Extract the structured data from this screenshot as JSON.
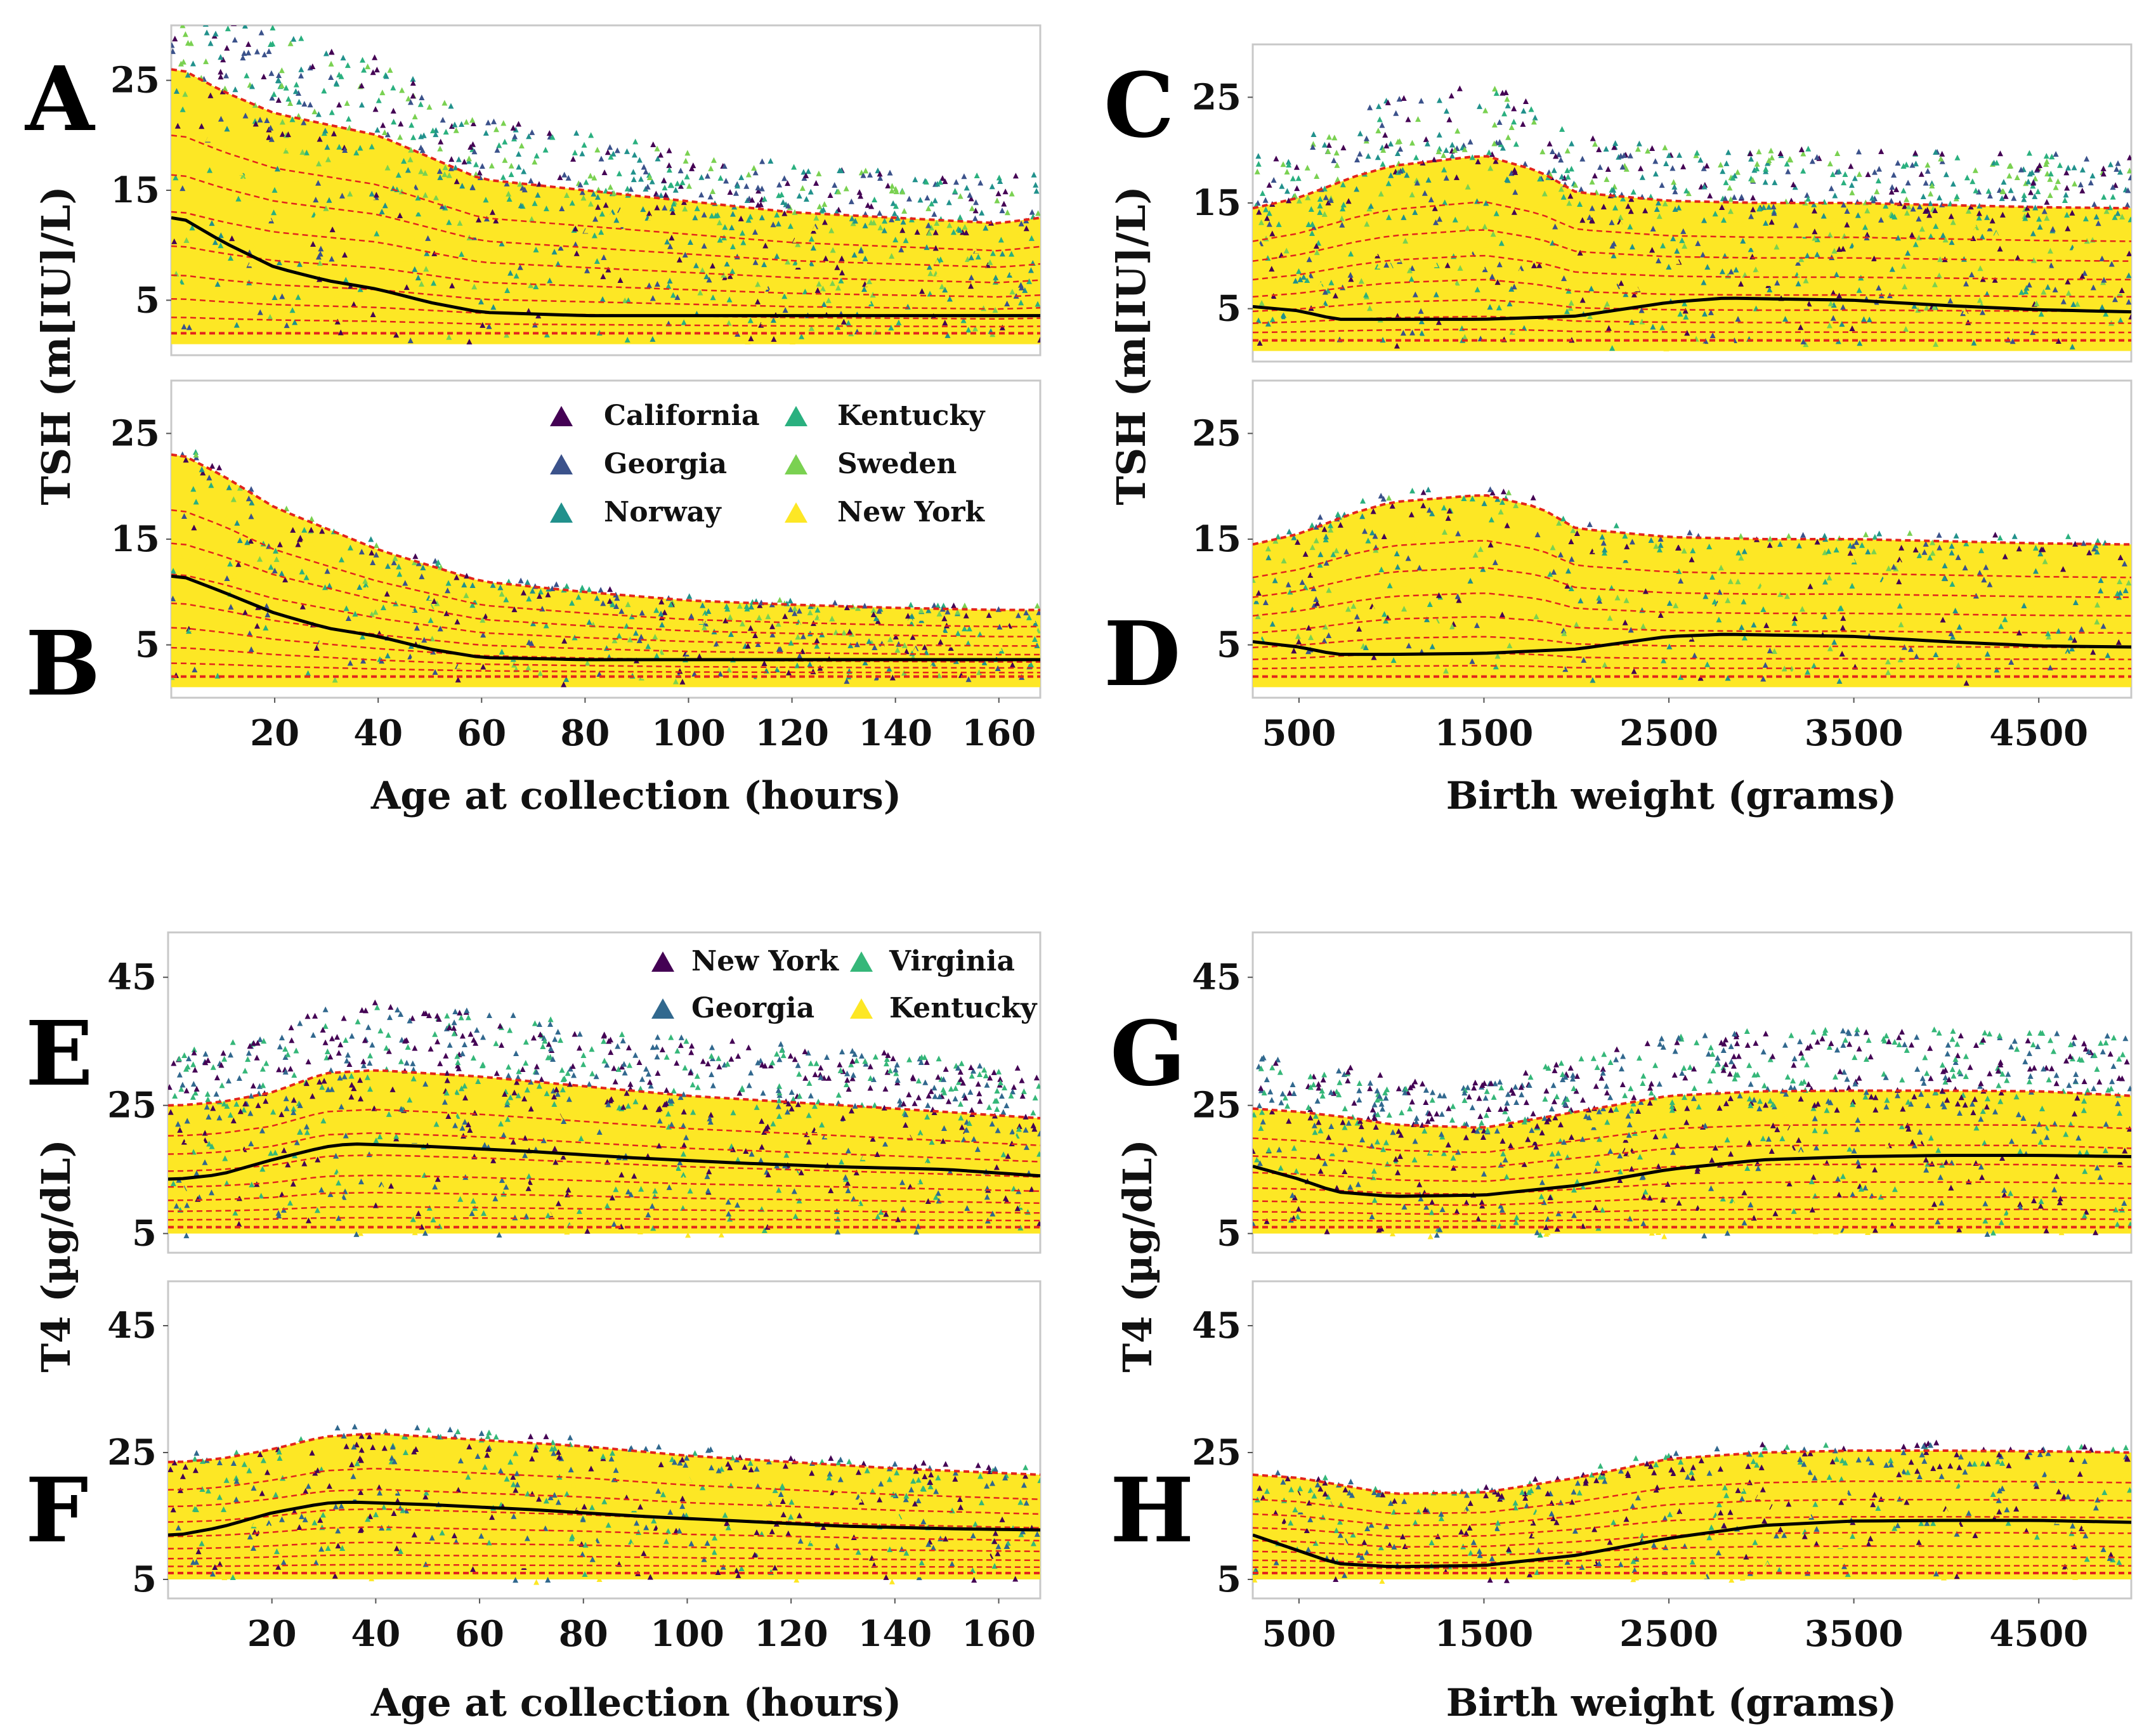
{
  "figure": {
    "description_labels": {
      "age_xlabel": "Age at collection (hours)",
      "weight_xlabel": "Birth weight (grams)",
      "tsh_ylabel": "TSH (m[IU]/L)",
      "t4_ylabel": "T4 (µg/dL)"
    }
  },
  "colors": {
    "California": "#440154",
    "Georgia": "#3b528b",
    "Norway": "#21918c",
    "Kentucky": "#2ab07f",
    "Sweden": "#7ad151",
    "New York": "#fde725",
    "NewYorkT4": "#440154",
    "GeorgiaT4": "#31688e",
    "VirginiaT4": "#35b779",
    "KentuckyT4": "#fde725",
    "median": "#000000",
    "centile": "#e3241b"
  },
  "legend_tsh": [
    "California",
    "Kentucky",
    "Georgia",
    "Sweden",
    "Norway",
    "New York"
  ],
  "legend_t4": [
    "New York",
    "Virginia",
    "Georgia",
    "Kentucky"
  ],
  "chart_data": [
    {
      "panel": "A",
      "type": "scatter",
      "xlabel": "Age at collection (hours)",
      "ylabel": "TSH (m[IU]/L)",
      "xlim": [
        0,
        168
      ],
      "ylim": [
        0,
        30
      ],
      "xticks": [],
      "yticks": [
        5,
        15,
        25
      ],
      "median": {
        "x": [
          2,
          10,
          20,
          30,
          40,
          50,
          60,
          80,
          100,
          120,
          140,
          168
        ],
        "y": [
          12.5,
          10.3,
          8.0,
          6.8,
          6.0,
          4.8,
          3.9,
          3.6,
          3.6,
          3.6,
          3.6,
          3.6
        ]
      },
      "upper": {
        "x": [
          2,
          10,
          20,
          30,
          40,
          50,
          60,
          80,
          100,
          120,
          140,
          160,
          168
        ],
        "y": [
          26,
          24,
          22,
          21,
          20,
          18,
          16,
          15,
          14,
          13,
          12.5,
          12,
          12.5
        ]
      }
    },
    {
      "panel": "B",
      "type": "scatter",
      "xlabel": "Age at collection (hours)",
      "ylabel": "TSH (m[IU]/L)",
      "xlim": [
        0,
        168
      ],
      "ylim": [
        0,
        30
      ],
      "xticks": [
        20,
        40,
        60,
        80,
        100,
        120,
        140,
        160
      ],
      "yticks": [
        5,
        15,
        25
      ],
      "median": {
        "x": [
          2,
          10,
          20,
          30,
          40,
          50,
          60,
          80,
          100,
          120,
          140,
          168
        ],
        "y": [
          11.5,
          10.0,
          8.0,
          6.6,
          5.8,
          4.6,
          3.8,
          3.6,
          3.6,
          3.6,
          3.6,
          3.6
        ]
      },
      "upper": {
        "x": [
          2,
          10,
          20,
          30,
          40,
          50,
          60,
          80,
          100,
          120,
          140,
          160,
          168
        ],
        "y": [
          23,
          21,
          18,
          16,
          14,
          12.5,
          11,
          10,
          9.2,
          8.8,
          8.5,
          8.3,
          8.3
        ]
      }
    },
    {
      "panel": "C",
      "type": "scatter",
      "xlabel": "Birth weight (grams)",
      "ylabel": "TSH (m[IU]/L)",
      "xlim": [
        250,
        5000
      ],
      "ylim": [
        0,
        30
      ],
      "xticks": [],
      "yticks": [
        5,
        15,
        25
      ],
      "median": {
        "x": [
          250,
          500,
          700,
          1000,
          1500,
          2000,
          2500,
          2800,
          3500,
          4000,
          4500,
          5000
        ],
        "y": [
          5.2,
          4.8,
          4.0,
          4.0,
          4.0,
          4.3,
          5.6,
          6.0,
          5.8,
          5.3,
          4.9,
          4.7
        ]
      },
      "upper": {
        "x": [
          250,
          500,
          800,
          1000,
          1500,
          1800,
          2000,
          2500,
          3000,
          3500,
          4000,
          4500,
          5000
        ],
        "y": [
          14.5,
          15.5,
          17.5,
          18.5,
          19.5,
          18.0,
          16.0,
          15.2,
          15.0,
          15.0,
          14.8,
          14.6,
          14.5
        ]
      }
    },
    {
      "panel": "D",
      "type": "scatter",
      "xlabel": "Birth weight (grams)",
      "ylabel": "TSH (m[IU]/L)",
      "xlim": [
        250,
        5000
      ],
      "ylim": [
        0,
        30
      ],
      "xticks": [
        500,
        1500,
        2500,
        3500,
        4500
      ],
      "yticks": [
        5,
        15,
        25
      ],
      "median": {
        "x": [
          250,
          500,
          700,
          1000,
          1500,
          2000,
          2500,
          2800,
          3500,
          4000,
          4500,
          5000
        ],
        "y": [
          5.3,
          4.8,
          4.1,
          4.1,
          4.2,
          4.6,
          5.8,
          6.0,
          5.8,
          5.3,
          4.9,
          4.8
        ]
      },
      "upper": {
        "x": [
          250,
          500,
          800,
          1000,
          1500,
          1800,
          2000,
          2500,
          3000,
          3500,
          4000,
          4500,
          5000
        ],
        "y": [
          14.5,
          15.5,
          17.5,
          18.5,
          19.2,
          18.0,
          16.0,
          15.2,
          15.0,
          15.0,
          14.8,
          14.6,
          14.5
        ]
      }
    },
    {
      "panel": "E",
      "type": "scatter",
      "xlabel": "Age at collection (hours)",
      "ylabel": "T4 (µg/dL)",
      "xlim": [
        0,
        168
      ],
      "ylim": [
        2,
        52
      ],
      "xticks": [],
      "yticks": [
        5,
        25,
        45
      ],
      "median": {
        "x": [
          2,
          10,
          20,
          30,
          35,
          50,
          70,
          90,
          110,
          130,
          150,
          168
        ],
        "y": [
          13.5,
          14.2,
          16.5,
          18.5,
          19.0,
          18.6,
          17.8,
          16.8,
          16.0,
          15.4,
          15.0,
          14.0
        ]
      },
      "upper": {
        "x": [
          2,
          10,
          20,
          30,
          40,
          60,
          80,
          100,
          120,
          140,
          168
        ],
        "y": [
          25,
          25.5,
          27,
          30,
          30.5,
          29.5,
          28,
          26.5,
          25.5,
          24.5,
          23
        ]
      }
    },
    {
      "panel": "F",
      "type": "scatter",
      "xlabel": "Age at collection (hours)",
      "ylabel": "T4 (µg/dL)",
      "xlim": [
        0,
        168
      ],
      "ylim": [
        2,
        52
      ],
      "xticks": [
        20,
        40,
        60,
        80,
        100,
        120,
        140,
        160
      ],
      "yticks": [
        5,
        25,
        45
      ],
      "median": {
        "x": [
          2,
          10,
          20,
          30,
          35,
          50,
          70,
          90,
          110,
          130,
          150,
          168
        ],
        "y": [
          12.0,
          13.2,
          15.5,
          17.0,
          17.2,
          16.8,
          16.0,
          15.0,
          14.2,
          13.4,
          13.0,
          12.8
        ]
      },
      "upper": {
        "x": [
          2,
          10,
          20,
          30,
          40,
          60,
          80,
          100,
          120,
          140,
          168
        ],
        "y": [
          23.5,
          24,
          25.5,
          27.5,
          28,
          27,
          26,
          24.5,
          23.5,
          22.5,
          21.5
        ]
      }
    },
    {
      "panel": "G",
      "type": "scatter",
      "xlabel": "Birth weight (grams)",
      "ylabel": "T4 (µg/dL)",
      "xlim": [
        250,
        5000
      ],
      "ylim": [
        2,
        52
      ],
      "xticks": [],
      "yticks": [
        5,
        25,
        45
      ],
      "median": {
        "x": [
          250,
          500,
          700,
          1000,
          1500,
          2000,
          2500,
          3000,
          3500,
          4000,
          4500,
          5000
        ],
        "y": [
          15.5,
          13.5,
          11.5,
          10.8,
          11.0,
          12.5,
          15.0,
          16.5,
          17.0,
          17.2,
          17.2,
          17.0
        ]
      },
      "upper": {
        "x": [
          250,
          500,
          800,
          1000,
          1500,
          2000,
          2500,
          3000,
          3500,
          4000,
          4500,
          5000
        ],
        "y": [
          24.5,
          24,
          23,
          22,
          21.5,
          24,
          26.5,
          27.2,
          27.3,
          27.3,
          27.2,
          26.5
        ]
      }
    },
    {
      "panel": "H",
      "type": "scatter",
      "xlabel": "Birth weight (grams)",
      "ylabel": "T4 (µg/dL)",
      "xlim": [
        250,
        5000
      ],
      "ylim": [
        2,
        52
      ],
      "xticks": [
        500,
        1500,
        2500,
        3500,
        4500
      ],
      "yticks": [
        5,
        25,
        45
      ],
      "median": {
        "x": [
          250,
          500,
          700,
          1000,
          1500,
          2000,
          2500,
          3000,
          3500,
          4000,
          4500,
          5000
        ],
        "y": [
          12.0,
          9.5,
          7.5,
          7.0,
          7.2,
          8.8,
          11.5,
          13.5,
          14.2,
          14.3,
          14.3,
          14.0
        ]
      },
      "upper": {
        "x": [
          250,
          500,
          800,
          1000,
          1500,
          2000,
          2500,
          3000,
          3500,
          4000,
          4500,
          5000
        ],
        "y": [
          21.5,
          21,
          19.5,
          18.5,
          18.7,
          21.0,
          24.0,
          25.0,
          25.3,
          25.3,
          25.2,
          25.0
        ]
      }
    }
  ]
}
